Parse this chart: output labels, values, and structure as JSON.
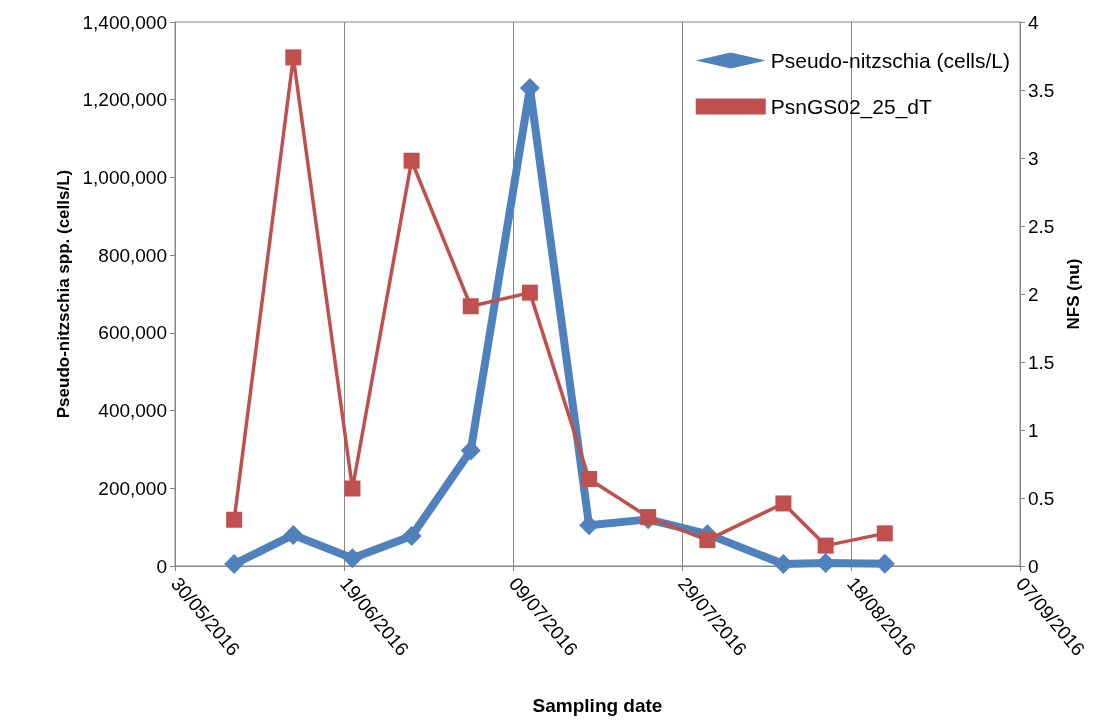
{
  "chart_data": {
    "type": "line",
    "xlabel": "Sampling date",
    "ylabel": "Pseudo-nitzschia spp. (cells/L)",
    "y2label": "NFS (nu)",
    "x": [
      "2016-06-06",
      "2016-06-13",
      "2016-06-20",
      "2016-06-27",
      "2016-07-04",
      "2016-07-11",
      "2016-07-18",
      "2016-07-25",
      "2016-08-01",
      "2016-08-10",
      "2016-08-15",
      "2016-08-22"
    ],
    "series": [
      {
        "name": "Pseudo-nitzschia (cells/L)",
        "color": "#4f81bd",
        "marker": "diamond",
        "values": [
          5000,
          80000,
          20000,
          77000,
          297000,
          1230000,
          105000,
          120000,
          82000,
          5000,
          8000,
          6000
        ]
      },
      {
        "name": "PsnGS02_25_dT",
        "color": "#c0504d",
        "marker": "square",
        "axis": "y2",
        "values": [
          0.34,
          3.74,
          0.57,
          2.98,
          1.91,
          2.01,
          0.64,
          0.36,
          0.19,
          0.46,
          0.15,
          0.24
        ]
      }
    ],
    "xlim": [
      "2016-05-30",
      "2016-09-07"
    ],
    "xticks": [
      {
        "value": "2016-05-30",
        "label": "30/05/2016"
      },
      {
        "value": "2016-06-19",
        "label": "19/06/2016"
      },
      {
        "value": "2016-07-09",
        "label": "09/07/2016"
      },
      {
        "value": "2016-07-29",
        "label": "29/07/2016"
      },
      {
        "value": "2016-08-18",
        "label": "18/08/2016"
      },
      {
        "value": "2016-09-07",
        "label": "07/09/2016"
      }
    ],
    "ylim": [
      0,
      1400000
    ],
    "yticks": [
      0,
      {
        "value": 200000,
        "label": "200,000"
      },
      {
        "value": 400000,
        "label": "400,000"
      },
      {
        "value": 600000,
        "label": "600,000"
      },
      {
        "value": 800000,
        "label": "800,000"
      },
      {
        "value": 1000000,
        "label": "1,000,000"
      },
      {
        "value": 1200000,
        "label": "1,200,000"
      },
      {
        "value": 1400000,
        "label": "1,400,000"
      }
    ],
    "y2lim": [
      0,
      4
    ],
    "y2ticks": [
      0,
      0.5,
      1,
      1.5,
      2,
      2.5,
      3,
      3.5,
      4
    ],
    "grid": "x",
    "legend": "top right"
  }
}
